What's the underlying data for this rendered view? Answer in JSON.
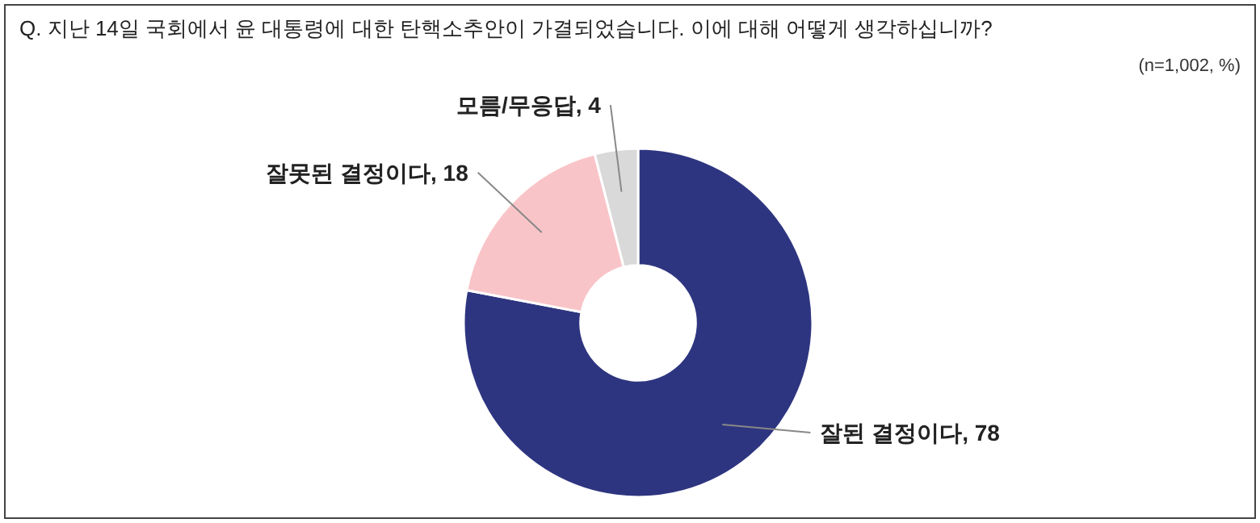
{
  "chart_data": {
    "type": "donut",
    "title": "Q. 지난 14일 국회에서 윤 대통령에 대한 탄핵소추안이 가결되었습니다. 이에 대해 어떻게 생각하십니까?",
    "annotations": [
      "(n=1,002, %)"
    ],
    "categories": [
      "잘된 결정이다",
      "잘못된 결정이다",
      "모름/무응답"
    ],
    "values": [
      78,
      18,
      4
    ],
    "colors": [
      "#2e3580",
      "#f9c4c8",
      "#d9d9d9"
    ],
    "value_labels": [
      ", 78",
      ", 18",
      ", 4"
    ]
  }
}
